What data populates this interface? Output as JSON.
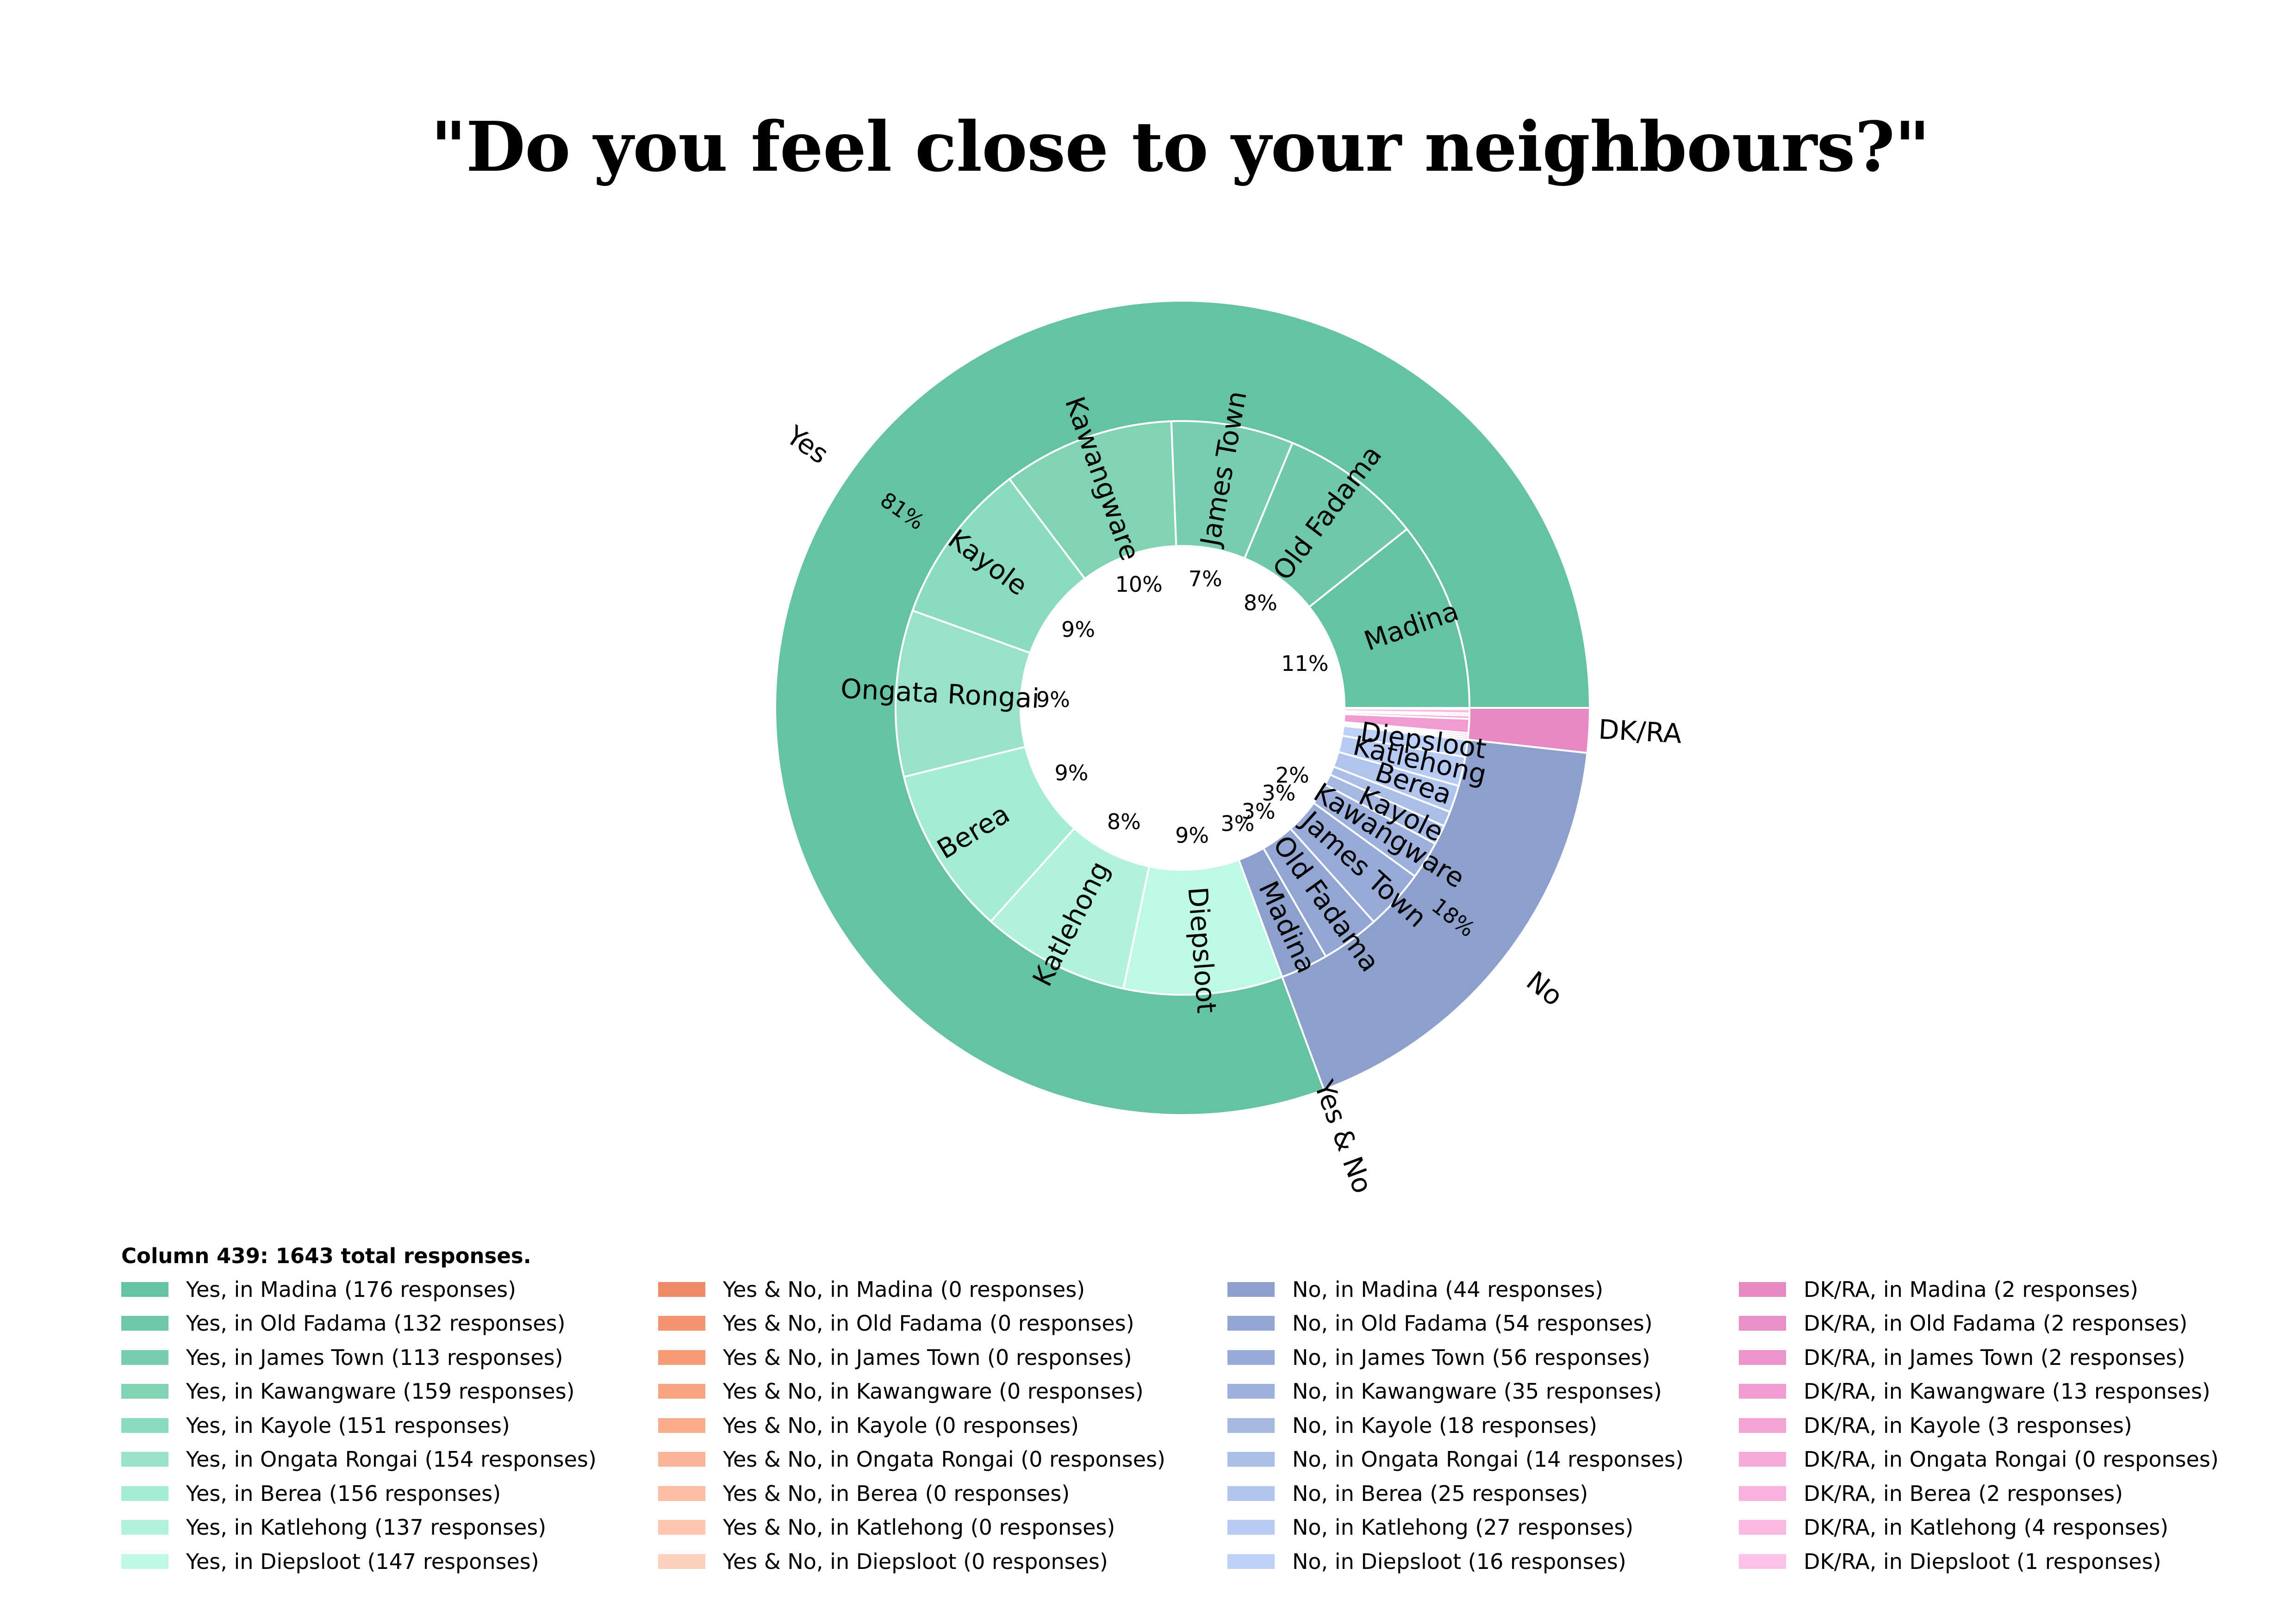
{
  "chart_data": {
    "type": "sunburst",
    "title": "\"Do you feel close to your neighbours?\"",
    "legend_heading": "Column 439: 1643 total responses.",
    "total_responses": 1643,
    "categories": [
      "Madina",
      "Old Fadama",
      "James Town",
      "Kawangware",
      "Kayole",
      "Ongata Rongai",
      "Berea",
      "Katlehong",
      "Diepsloot"
    ],
    "groups": [
      {
        "name": "Yes",
        "percent_label": "81%",
        "color": "#66c2a5",
        "children": [
          {
            "label": "Madina",
            "value": 176,
            "percent_label": "11%",
            "color": "#66c2a5",
            "legend": "Yes, in Madina (176 responses)"
          },
          {
            "label": "Old Fadama",
            "value": 132,
            "percent_label": "8%",
            "color": "#6fc8a9",
            "legend": "Yes, in Old Fadama (132 responses)"
          },
          {
            "label": "James Town",
            "value": 113,
            "percent_label": "7%",
            "color": "#77cdad",
            "legend": "Yes, in James Town (113 responses)"
          },
          {
            "label": "Kawangware",
            "value": 159,
            "percent_label": "10%",
            "color": "#80d3b3",
            "legend": "Yes, in Kawangware (159 responses)"
          },
          {
            "label": "Kayole",
            "value": 151,
            "percent_label": "9%",
            "color": "#8bdbbf",
            "legend": "Yes, in Kayole (151 responses)"
          },
          {
            "label": "Ongata Rongai",
            "value": 154,
            "percent_label": "9%",
            "color": "#98e3c8",
            "legend": "Yes, in Ongata Rongai (154 responses)"
          },
          {
            "label": "Berea",
            "value": 156,
            "percent_label": "9%",
            "color": "#a6ebd3",
            "legend": "Yes, in Berea (156 responses)"
          },
          {
            "label": "Katlehong",
            "value": 137,
            "percent_label": "8%",
            "color": "#b2f2dc",
            "legend": "Yes, in Katlehong (137 responses)"
          },
          {
            "label": "Diepsloot",
            "value": 147,
            "percent_label": "9%",
            "color": "#bff8e5",
            "legend": "Yes, in Diepsloot (147 responses)"
          }
        ]
      },
      {
        "name": "Yes & No",
        "percent_label": "",
        "color": "#fc8d62",
        "children": [
          {
            "label": "Madina",
            "value": 0,
            "color": "#f0896a",
            "legend": "Yes & No, in Madina (0 responses)"
          },
          {
            "label": "Old Fadama",
            "value": 0,
            "color": "#f4936f",
            "legend": "Yes & No, in Old Fadama (0 responses)"
          },
          {
            "label": "James Town",
            "value": 0,
            "color": "#f69a77",
            "legend": "Yes & No, in James Town (0 responses)"
          },
          {
            "label": "Kawangware",
            "value": 0,
            "color": "#f8a382",
            "legend": "Yes & No, in Kawangware (0 responses)"
          },
          {
            "label": "Kayole",
            "value": 0,
            "color": "#faac8c",
            "legend": "Yes & No, in Kayole (0 responses)"
          },
          {
            "label": "Ongata Rongai",
            "value": 0,
            "color": "#fbb497",
            "legend": "Yes & No, in Ongata Rongai (0 responses)"
          },
          {
            "label": "Berea",
            "value": 0,
            "color": "#fcbea3",
            "legend": "Yes & No, in Berea (0 responses)"
          },
          {
            "label": "Katlehong",
            "value": 0,
            "color": "#fdc6ae",
            "legend": "Yes & No, in Katlehong (0 responses)"
          },
          {
            "label": "Diepsloot",
            "value": 0,
            "color": "#fdd0bc",
            "legend": "Yes & No, in Diepsloot (0 responses)"
          }
        ]
      },
      {
        "name": "No",
        "percent_label": "18%",
        "color": "#8da0cb",
        "children": [
          {
            "label": "Madina",
            "value": 44,
            "percent_label": "3%",
            "color": "#8da0cb",
            "legend": "No, in Madina (44 responses)"
          },
          {
            "label": "Old Fadama",
            "value": 54,
            "percent_label": "3%",
            "color": "#93a6d1",
            "legend": "No, in Old Fadama (54 responses)"
          },
          {
            "label": "James Town",
            "value": 56,
            "percent_label": "3%",
            "color": "#98abd6",
            "legend": "No, in James Town (56 responses)"
          },
          {
            "label": "Kawangware",
            "value": 35,
            "percent_label": "2%",
            "color": "#9eb1dc",
            "legend": "No, in Kawangware (35 responses)"
          },
          {
            "label": "Kayole",
            "value": 18,
            "color": "#a4b8e2",
            "legend": "No, in Kayole (18 responses)"
          },
          {
            "label": "Ongata Rongai",
            "value": 14,
            "color": "#abbee8",
            "legend": "No, in Ongata Rongai (14 responses)"
          },
          {
            "label": "Berea",
            "value": 25,
            "color": "#b0c4ee",
            "legend": "No, in Berea (25 responses)"
          },
          {
            "label": "Katlehong",
            "value": 27,
            "color": "#b6caf3",
            "legend": "No, in Katlehong (27 responses)"
          },
          {
            "label": "Diepsloot",
            "value": 16,
            "color": "#bdd0f8",
            "legend": "No, in Diepsloot (16 responses)"
          }
        ]
      },
      {
        "name": "DK/RA",
        "percent_label": "",
        "color": "#e78ac3",
        "children": [
          {
            "label": "Madina",
            "value": 2,
            "color": "#e78ac3",
            "legend": "DK/RA, in Madina (2 responses)"
          },
          {
            "label": "Old Fadama",
            "value": 2,
            "color": "#ea90c7",
            "legend": "DK/RA, in Old Fadama (2 responses)"
          },
          {
            "label": "James Town",
            "value": 2,
            "color": "#ed95cb",
            "legend": "DK/RA, in James Town (2 responses)"
          },
          {
            "label": "Kawangware",
            "value": 13,
            "color": "#f09cd0",
            "legend": "DK/RA, in Kawangware (13 responses)"
          },
          {
            "label": "Kayole",
            "value": 3,
            "color": "#f3a3d4",
            "legend": "DK/RA, in Kayole (3 responses)"
          },
          {
            "label": "Ongata Rongai",
            "value": 0,
            "color": "#f6aad8",
            "legend": "DK/RA, in Ongata Rongai (0 responses)"
          },
          {
            "label": "Berea",
            "value": 2,
            "color": "#f8b2dd",
            "legend": "DK/RA, in Berea (2 responses)"
          },
          {
            "label": "Katlehong",
            "value": 4,
            "color": "#fab9e1",
            "legend": "DK/RA, in Katlehong (4 responses)"
          },
          {
            "label": "Diepsloot",
            "value": 1,
            "color": "#fcc1e6",
            "legend": "DK/RA, in Diepsloot (1 responses)"
          }
        ]
      }
    ]
  }
}
